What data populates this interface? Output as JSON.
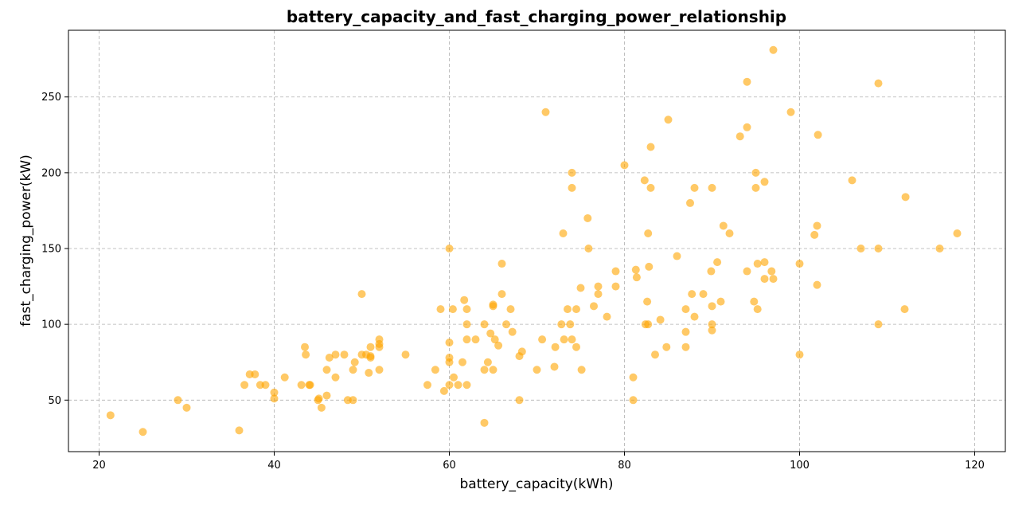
{
  "chart_data": {
    "type": "scatter",
    "title": "battery_capacity_and_fast_charging_power_relationship",
    "xlabel": "battery_capacity(kWh)",
    "ylabel": "fast_charging_power(kW)",
    "xlim": [
      16.5,
      123.5
    ],
    "ylim": [
      16,
      294
    ],
    "xticks": [
      20,
      40,
      60,
      80,
      100,
      120
    ],
    "yticks": [
      50,
      100,
      150,
      200,
      250
    ],
    "grid": true,
    "marker_color": "#FFA500",
    "marker_alpha": 0.6,
    "points": [
      [
        21.3,
        40
      ],
      [
        25,
        29
      ],
      [
        29,
        50
      ],
      [
        30,
        45
      ],
      [
        36,
        30
      ],
      [
        36.6,
        60
      ],
      [
        37.2,
        67
      ],
      [
        37.8,
        67
      ],
      [
        38.4,
        60
      ],
      [
        39,
        60
      ],
      [
        40,
        55
      ],
      [
        40,
        51
      ],
      [
        41.2,
        65
      ],
      [
        43.1,
        60
      ],
      [
        43.5,
        85
      ],
      [
        43.6,
        80
      ],
      [
        44,
        60
      ],
      [
        44.1,
        60
      ],
      [
        45,
        50
      ],
      [
        45.1,
        51
      ],
      [
        45.4,
        45
      ],
      [
        46,
        70
      ],
      [
        46,
        53
      ],
      [
        46.3,
        78
      ],
      [
        47,
        80
      ],
      [
        47,
        65
      ],
      [
        48,
        80
      ],
      [
        48.4,
        50
      ],
      [
        49,
        50
      ],
      [
        49,
        70
      ],
      [
        49.2,
        75
      ],
      [
        50,
        80
      ],
      [
        50,
        120
      ],
      [
        50.5,
        80
      ],
      [
        50.8,
        68
      ],
      [
        51,
        85
      ],
      [
        51,
        79
      ],
      [
        51,
        78
      ],
      [
        52,
        70
      ],
      [
        52,
        85
      ],
      [
        52,
        87
      ],
      [
        52,
        90
      ],
      [
        55,
        80
      ],
      [
        57.5,
        60
      ],
      [
        58.4,
        70
      ],
      [
        59,
        110
      ],
      [
        59.4,
        56
      ],
      [
        60,
        150
      ],
      [
        60,
        88
      ],
      [
        60,
        78
      ],
      [
        60,
        75
      ],
      [
        60,
        60
      ],
      [
        60.4,
        110
      ],
      [
        60.5,
        65
      ],
      [
        61,
        60
      ],
      [
        61.5,
        75
      ],
      [
        61.7,
        116
      ],
      [
        62,
        110
      ],
      [
        62,
        100
      ],
      [
        62,
        90
      ],
      [
        62,
        60
      ],
      [
        63,
        90
      ],
      [
        64,
        100
      ],
      [
        64,
        70
      ],
      [
        64,
        35
      ],
      [
        64.4,
        75
      ],
      [
        64.7,
        94
      ],
      [
        65,
        113
      ],
      [
        65,
        112
      ],
      [
        65,
        70
      ],
      [
        65.2,
        90
      ],
      [
        65.6,
        86
      ],
      [
        66,
        140
      ],
      [
        66,
        120
      ],
      [
        66.5,
        100
      ],
      [
        67,
        110
      ],
      [
        67.2,
        95
      ],
      [
        68,
        50
      ],
      [
        68,
        79
      ],
      [
        68.3,
        82
      ],
      [
        70,
        70
      ],
      [
        70.6,
        90
      ],
      [
        71,
        240
      ],
      [
        72,
        72
      ],
      [
        72.1,
        85
      ],
      [
        72.8,
        100
      ],
      [
        73,
        160
      ],
      [
        73.1,
        90
      ],
      [
        73.5,
        110
      ],
      [
        73.8,
        100
      ],
      [
        74,
        200
      ],
      [
        74,
        190
      ],
      [
        74,
        90
      ],
      [
        74.5,
        110
      ],
      [
        74.5,
        85
      ],
      [
        75,
        124
      ],
      [
        75.1,
        70
      ],
      [
        75.8,
        170
      ],
      [
        75.9,
        150
      ],
      [
        76.5,
        112
      ],
      [
        77,
        125
      ],
      [
        77,
        120
      ],
      [
        78,
        105
      ],
      [
        79,
        135
      ],
      [
        79,
        125
      ],
      [
        80,
        205
      ],
      [
        81,
        65
      ],
      [
        81,
        50
      ],
      [
        81.3,
        136
      ],
      [
        81.4,
        131
      ],
      [
        82.3,
        195
      ],
      [
        82.4,
        100
      ],
      [
        82.6,
        115
      ],
      [
        82.7,
        160
      ],
      [
        82.7,
        100
      ],
      [
        82.8,
        138
      ],
      [
        83,
        190
      ],
      [
        83,
        217
      ],
      [
        83.5,
        80
      ],
      [
        84.1,
        103
      ],
      [
        84.8,
        85
      ],
      [
        85,
        235
      ],
      [
        86,
        145
      ],
      [
        87,
        110
      ],
      [
        87,
        95
      ],
      [
        87,
        85
      ],
      [
        87.5,
        180
      ],
      [
        87.7,
        120
      ],
      [
        88,
        190
      ],
      [
        88,
        105
      ],
      [
        89,
        120
      ],
      [
        89.9,
        135
      ],
      [
        90,
        112
      ],
      [
        90,
        190
      ],
      [
        90,
        100
      ],
      [
        90,
        96
      ],
      [
        90.6,
        141
      ],
      [
        91,
        115
      ],
      [
        91.3,
        165
      ],
      [
        92,
        160
      ],
      [
        93.2,
        224
      ],
      [
        94,
        260
      ],
      [
        94,
        230
      ],
      [
        94,
        135
      ],
      [
        94.8,
        115
      ],
      [
        95,
        200
      ],
      [
        95,
        190
      ],
      [
        95.2,
        140
      ],
      [
        95.2,
        110
      ],
      [
        96,
        194
      ],
      [
        96,
        141
      ],
      [
        96,
        130
      ],
      [
        96.8,
        135
      ],
      [
        97,
        281
      ],
      [
        97,
        130
      ],
      [
        99,
        240
      ],
      [
        100,
        140
      ],
      [
        100,
        80
      ],
      [
        101.7,
        159
      ],
      [
        102,
        165
      ],
      [
        102,
        126
      ],
      [
        102.1,
        225
      ],
      [
        106,
        195
      ],
      [
        107,
        150
      ],
      [
        109,
        259
      ],
      [
        109,
        150
      ],
      [
        109,
        100
      ],
      [
        112,
        110
      ],
      [
        112.1,
        184
      ],
      [
        116,
        150
      ],
      [
        118,
        160
      ]
    ]
  }
}
